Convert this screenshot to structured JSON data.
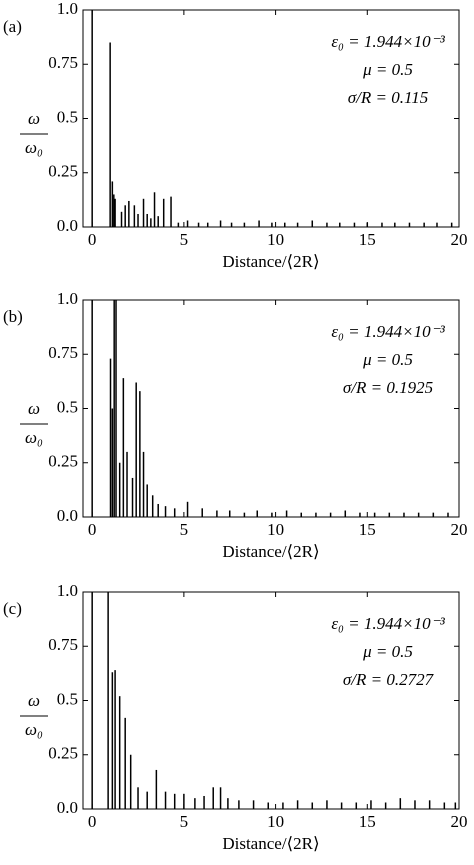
{
  "chart_data": [
    {
      "type": "stem",
      "panel_label": "(a)",
      "ylabel_top": "ω",
      "ylabel_bottom": "ω₀",
      "xlabel": "Distance/⟨2R⟩",
      "annotations": [
        "ε₀ = 1.944×10⁻³",
        "μ = 0.5",
        "σ/R = 0.115"
      ],
      "color": "#000000",
      "x": [
        0,
        0.98,
        1.1,
        1.18,
        1.25,
        1.6,
        1.8,
        2.0,
        2.3,
        2.5,
        2.8,
        3.0,
        3.2,
        3.4,
        3.6,
        3.9,
        4.3,
        4.7,
        5.2,
        5.8,
        6.3,
        7.0,
        7.6,
        8.3,
        9.1,
        9.8,
        10.5,
        11.2,
        12.0,
        12.8,
        13.5,
        14.3,
        15.0,
        15.8,
        16.5,
        17.3,
        18.1,
        18.8,
        19.6
      ],
      "values": [
        1.0,
        0.85,
        0.21,
        0.15,
        0.13,
        0.07,
        0.1,
        0.12,
        0.1,
        0.06,
        0.13,
        0.06,
        0.04,
        0.16,
        0.05,
        0.13,
        0.14,
        0.02,
        0.03,
        0.02,
        0.02,
        0.03,
        0.02,
        0.02,
        0.03,
        0.02,
        0.02,
        0.02,
        0.03,
        0.02,
        0.02,
        0.02,
        0.02,
        0.02,
        0.02,
        0.02,
        0.02,
        0.02,
        0.02
      ],
      "xlim": [
        -0.5,
        20
      ],
      "ylim": [
        0,
        1
      ],
      "xticks": [
        0,
        5,
        10,
        15,
        20
      ],
      "yticks": [
        {
          "value": 0,
          "label": "0.0"
        },
        0.25,
        0.5,
        0.75,
        {
          "value": 1,
          "label": "1.0"
        }
      ]
    },
    {
      "type": "stem",
      "panel_label": "(b)",
      "ylabel_top": "ω",
      "ylabel_bottom": "ω₀",
      "xlabel": "Distance/⟨2R⟩",
      "annotations": [
        "ε₀ = 1.944×10⁻³",
        "μ = 0.5",
        "σ/R = 0.1925"
      ],
      "color": "#000000",
      "x": [
        0,
        1.0,
        1.1,
        1.2,
        1.3,
        1.5,
        1.7,
        1.9,
        2.2,
        2.4,
        2.6,
        2.8,
        3.0,
        3.3,
        3.6,
        4.0,
        4.5,
        5.2,
        6.0,
        6.8,
        7.5,
        8.3,
        9.0,
        9.8,
        10.6,
        11.4,
        12.2,
        13.0,
        13.8,
        14.6,
        15.4,
        16.2,
        17.0,
        17.8,
        18.6,
        19.4
      ],
      "values": [
        1.0,
        0.73,
        0.5,
        1.0,
        1.0,
        0.25,
        0.64,
        0.3,
        0.18,
        0.62,
        0.58,
        0.3,
        0.15,
        0.1,
        0.06,
        0.05,
        0.04,
        0.07,
        0.04,
        0.03,
        0.03,
        0.02,
        0.03,
        0.02,
        0.03,
        0.02,
        0.02,
        0.02,
        0.03,
        0.02,
        0.02,
        0.02,
        0.02,
        0.02,
        0.02,
        0.02
      ],
      "xlim": [
        -0.5,
        20
      ],
      "ylim": [
        0,
        1
      ],
      "xticks": [
        0,
        5,
        10,
        15,
        20
      ],
      "yticks": [
        {
          "value": 0,
          "label": "0.0"
        },
        0.25,
        0.5,
        0.75,
        {
          "value": 1,
          "label": "1.0"
        }
      ]
    },
    {
      "type": "stem",
      "panel_label": "(c)",
      "ylabel_top": "ω",
      "ylabel_bottom": "ω₀",
      "xlabel": "Distance/⟨2R⟩",
      "annotations": [
        "ε₀ = 1.944×10⁻³",
        "μ = 0.5",
        "σ/R = 0.2727"
      ],
      "color": "#000000",
      "x": [
        0,
        0.87,
        1.1,
        1.25,
        1.5,
        1.8,
        2.1,
        2.5,
        3.0,
        3.5,
        4.0,
        4.5,
        5.0,
        5.6,
        6.1,
        6.6,
        7.0,
        7.4,
        8.0,
        8.8,
        9.6,
        10.4,
        11.2,
        12.0,
        12.8,
        13.6,
        14.4,
        15.2,
        16.0,
        16.8,
        17.6,
        18.4,
        19.2,
        19.8
      ],
      "values": [
        1.0,
        1.0,
        0.63,
        0.64,
        0.52,
        0.42,
        0.25,
        0.1,
        0.08,
        0.18,
        0.08,
        0.07,
        0.07,
        0.05,
        0.06,
        0.1,
        0.1,
        0.05,
        0.04,
        0.04,
        0.03,
        0.03,
        0.04,
        0.03,
        0.04,
        0.03,
        0.03,
        0.04,
        0.03,
        0.05,
        0.04,
        0.04,
        0.03,
        0.03
      ],
      "xlim": [
        -0.5,
        20
      ],
      "ylim": [
        0,
        1
      ],
      "xticks": [
        0,
        5,
        10,
        15,
        20
      ],
      "yticks": [
        {
          "value": 0,
          "label": "0.0"
        },
        0.25,
        0.5,
        0.75,
        {
          "value": 1,
          "label": "1.0"
        }
      ]
    }
  ]
}
